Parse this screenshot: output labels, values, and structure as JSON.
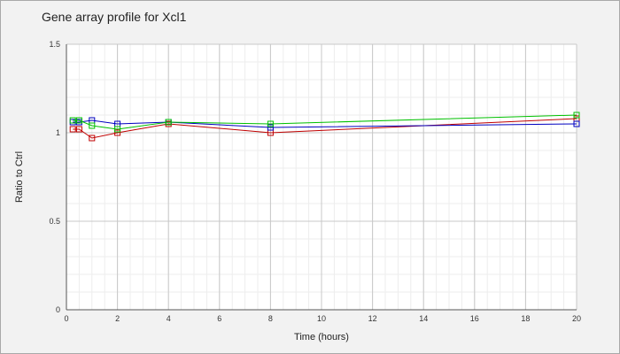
{
  "chart_data": {
    "type": "line",
    "title": "Gene array profile for Xcl1",
    "xlabel": "Time (hours)",
    "ylabel": "Ratio to Ctrl",
    "xlim": [
      0,
      20
    ],
    "ylim": [
      0,
      1.5
    ],
    "xticks": [
      0,
      2,
      4,
      6,
      8,
      10,
      12,
      14,
      16,
      18,
      20
    ],
    "yticks": [
      0,
      0.5,
      1,
      1.5
    ],
    "ytick_labels": [
      "0",
      "0.5",
      "1",
      "1.5"
    ],
    "grid": true,
    "series": [
      {
        "color": "#c00000",
        "x": [
          0.25,
          0.5,
          1,
          2,
          4,
          8,
          20
        ],
        "y": [
          1.02,
          1.02,
          0.97,
          1.0,
          1.05,
          1.0,
          1.08
        ]
      },
      {
        "color": "#0000c0",
        "x": [
          0.25,
          0.5,
          1,
          2,
          4,
          8,
          20
        ],
        "y": [
          1.06,
          1.06,
          1.07,
          1.05,
          1.06,
          1.03,
          1.05
        ]
      },
      {
        "color": "#00c000",
        "x": [
          0.25,
          0.5,
          1,
          2,
          4,
          8,
          20
        ],
        "y": [
          1.07,
          1.07,
          1.04,
          1.02,
          1.06,
          1.05,
          1.1
        ]
      }
    ]
  }
}
